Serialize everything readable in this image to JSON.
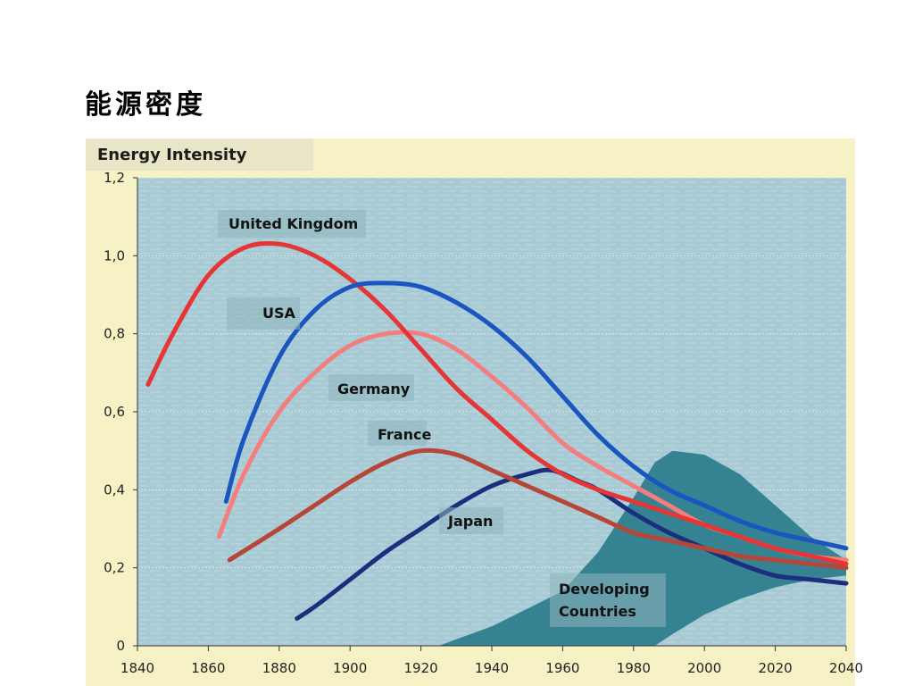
{
  "slide": {
    "title": "能源密度"
  },
  "chart_data": {
    "type": "line",
    "ylabel": "Energy Intensity",
    "xlim": [
      1840,
      2040
    ],
    "ylim": [
      0,
      1.2
    ],
    "x_ticks": [
      1840,
      1860,
      1880,
      1900,
      1920,
      1940,
      1960,
      1980,
      2000,
      2020,
      2040
    ],
    "y_ticks": [
      "0",
      "0,2",
      "0,4",
      "0,6",
      "0,8",
      "1,0",
      "1,2"
    ],
    "y_tick_values": [
      0,
      0.2,
      0.4,
      0.6,
      0.8,
      1.0,
      1.2
    ],
    "grid": true,
    "series": [
      {
        "name": "United Kingdom",
        "color": "#e53535",
        "x": [
          1843,
          1850,
          1860,
          1870,
          1880,
          1890,
          1900,
          1910,
          1920,
          1930,
          1940,
          1950,
          1960,
          1970,
          1980,
          1990,
          2000,
          2010,
          2020,
          2030,
          2040
        ],
        "y": [
          0.67,
          0.8,
          0.95,
          1.02,
          1.03,
          1.0,
          0.94,
          0.86,
          0.76,
          0.66,
          0.58,
          0.5,
          0.44,
          0.4,
          0.37,
          0.34,
          0.31,
          0.28,
          0.25,
          0.23,
          0.21
        ]
      },
      {
        "name": "USA",
        "color": "#1a55c0",
        "x": [
          1865,
          1870,
          1880,
          1890,
          1900,
          1910,
          1920,
          1930,
          1940,
          1950,
          1960,
          1970,
          1980,
          1990,
          2000,
          2010,
          2020,
          2030,
          2040
        ],
        "y": [
          0.37,
          0.53,
          0.74,
          0.86,
          0.92,
          0.93,
          0.92,
          0.88,
          0.82,
          0.74,
          0.64,
          0.54,
          0.46,
          0.4,
          0.36,
          0.32,
          0.29,
          0.27,
          0.25
        ]
      },
      {
        "name": "Germany",
        "color": "#f47e7e",
        "x": [
          1863,
          1870,
          1880,
          1890,
          1900,
          1910,
          1920,
          1930,
          1940,
          1950,
          1960,
          1970,
          1980,
          1990,
          2000,
          2010,
          2020,
          2030,
          2040
        ],
        "y": [
          0.28,
          0.44,
          0.6,
          0.7,
          0.77,
          0.8,
          0.8,
          0.76,
          0.69,
          0.61,
          0.52,
          0.46,
          0.41,
          0.36,
          0.31,
          0.28,
          0.25,
          0.23,
          0.22
        ]
      },
      {
        "name": "France",
        "color": "#b54638",
        "x": [
          1866,
          1880,
          1890,
          1900,
          1910,
          1920,
          1930,
          1940,
          1950,
          1960,
          1970,
          1980,
          1990,
          2000,
          2010,
          2020,
          2030,
          2040
        ],
        "y": [
          0.22,
          0.3,
          0.36,
          0.42,
          0.47,
          0.5,
          0.49,
          0.45,
          0.41,
          0.37,
          0.33,
          0.29,
          0.27,
          0.25,
          0.23,
          0.22,
          0.21,
          0.2
        ]
      },
      {
        "name": "Japan",
        "color": "#1c2e7d",
        "x": [
          1885,
          1890,
          1900,
          1910,
          1920,
          1930,
          1940,
          1950,
          1957,
          1965,
          1970,
          1980,
          1990,
          2000,
          2010,
          2020,
          2030,
          2040
        ],
        "y": [
          0.07,
          0.1,
          0.17,
          0.24,
          0.3,
          0.36,
          0.41,
          0.44,
          0.45,
          0.42,
          0.4,
          0.34,
          0.29,
          0.25,
          0.21,
          0.18,
          0.17,
          0.16
        ]
      }
    ],
    "band": {
      "name": "Developing Countries",
      "color": "#2b7d8c",
      "x": [
        1925,
        1940,
        1960,
        1970,
        1980,
        1986,
        1991,
        2000,
        2010,
        2020,
        2030,
        2040
      ],
      "upper": [
        0.0,
        0.05,
        0.14,
        0.24,
        0.38,
        0.47,
        0.5,
        0.49,
        0.44,
        0.36,
        0.28,
        0.22
      ],
      "lower": [
        0.0,
        0.0,
        0.0,
        0.0,
        0.0,
        0.0,
        0.03,
        0.08,
        0.12,
        0.15,
        0.17,
        0.18
      ]
    },
    "labels": {
      "uk": "United Kingdom",
      "usa": "USA",
      "germany": "Germany",
      "france": "France",
      "japan": "Japan",
      "developing_1": "Developing",
      "developing_2": "Countries"
    }
  }
}
